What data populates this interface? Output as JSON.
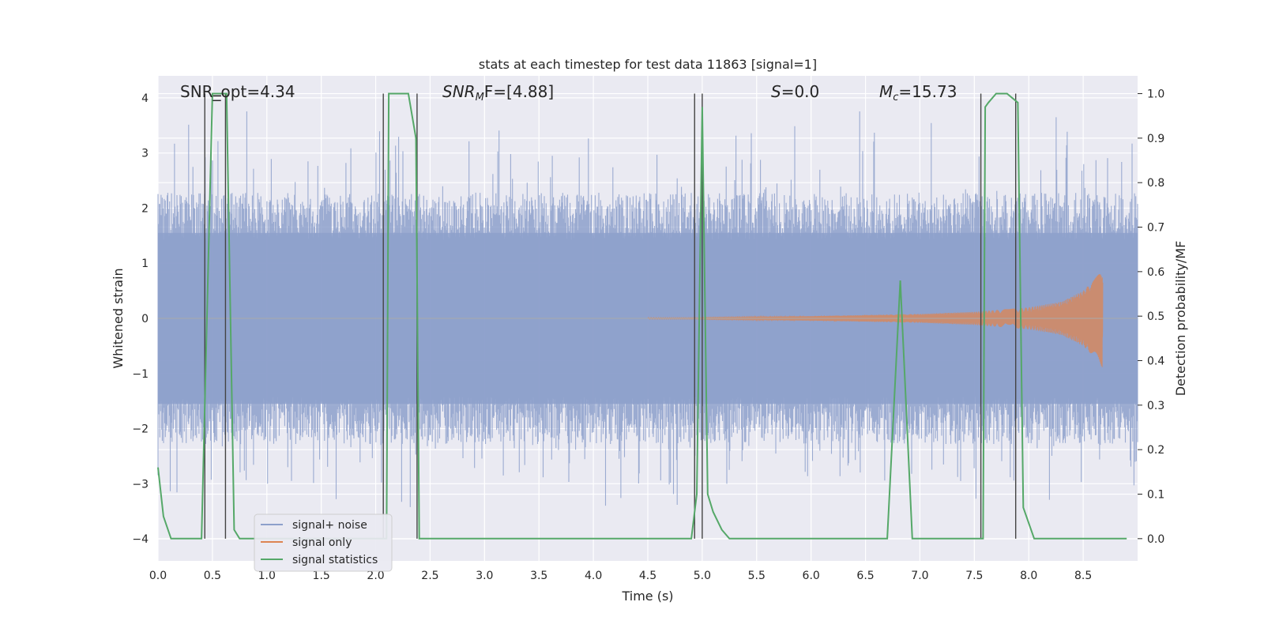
{
  "chart_data": {
    "type": "line",
    "title": "stats at each timestep for test data 11863 [signal=1]",
    "xlabel": "Time (s)",
    "ylabel": "Whitened strain",
    "ylabel_right": "Detection probability/MF",
    "xlim": [
      0,
      9.0
    ],
    "ylim": [
      -4.4,
      4.4
    ],
    "ylim_right": [
      -0.05,
      1.04
    ],
    "xticks": [
      0.0,
      0.5,
      1.0,
      1.5,
      2.0,
      2.5,
      3.0,
      3.5,
      4.0,
      4.5,
      5.0,
      5.5,
      6.0,
      6.5,
      7.0,
      7.5,
      8.0,
      8.5
    ],
    "xtick_labels": [
      "0.0",
      "0.5",
      "1.0",
      "1.5",
      "2.0",
      "2.5",
      "3.0",
      "3.5",
      "4.0",
      "4.5",
      "5.0",
      "5.5",
      "6.0",
      "6.5",
      "7.0",
      "7.5",
      "8.0",
      "8.5"
    ],
    "yticks": [
      -4,
      -3,
      -2,
      -1,
      0,
      1,
      2,
      3,
      4
    ],
    "ytick_labels": [
      "−4",
      "−3",
      "−2",
      "−1",
      "0",
      "1",
      "2",
      "3",
      "4"
    ],
    "yticks_right": [
      0.0,
      0.1,
      0.2,
      0.3,
      0.4,
      0.5,
      0.6,
      0.7,
      0.8,
      0.9,
      1.0
    ],
    "ytick_right_labels": [
      "0.0",
      "0.1",
      "0.2",
      "0.3",
      "0.4",
      "0.5",
      "0.6",
      "0.7",
      "0.8",
      "0.9",
      "1.0"
    ],
    "grid": true,
    "legend_position": "lower-left",
    "annotations": {
      "snr_opt": "SNR_opt=4.34",
      "snr_mf_main": "SNR",
      "snr_mf_sub": "M",
      "snr_mf_rest": "F=[4.88]",
      "s_label": "S",
      "s_value": "=0.0",
      "mc_main": "M",
      "mc_sub": "c",
      "mc_value": "=15.73"
    },
    "series": [
      {
        "name": "signal+ noise",
        "color": "#8da0cb",
        "description_type": "noise band",
        "band_typical": [
          -1.9,
          1.9
        ],
        "band_peaks_upper": [
          4.0,
          3.7,
          2.6,
          2.5,
          2.3,
          2.4,
          2.9,
          2.5,
          2.6,
          2.2,
          3.6,
          3.0,
          2.8,
          3.7,
          3.2,
          3.7,
          3.4,
          2.8,
          3.3,
          3.5
        ],
        "band_peaks_lower": [
          -2.6,
          -3.1,
          -2.4,
          -2.8,
          -3.3,
          -3.1,
          -3.4,
          -2.9,
          -3.3,
          -3.0,
          -3.5,
          -2.9,
          -3.1,
          -3.5,
          -2.8,
          -3.0,
          -2.8,
          -2.4,
          -2.9,
          -3.0
        ]
      },
      {
        "name": "signal only",
        "color": "#dd8452",
        "description_type": "chirp",
        "chirp_points": [
          [
            5.0,
            0.02
          ],
          [
            6.0,
            0.04
          ],
          [
            7.0,
            0.08
          ],
          [
            7.5,
            0.12
          ],
          [
            8.0,
            0.2
          ],
          [
            8.3,
            0.3
          ],
          [
            8.5,
            0.5
          ],
          [
            8.6,
            0.7
          ],
          [
            8.68,
            0.9
          ]
        ],
        "end_time": 8.68
      },
      {
        "name": "signal statistics",
        "color": "#55a868",
        "axis": "right",
        "x": [
          0.0,
          0.05,
          0.12,
          0.2,
          0.4,
          0.5,
          0.6,
          0.63,
          0.7,
          0.75,
          0.8,
          2.05,
          2.1,
          2.12,
          2.3,
          2.37,
          2.4,
          2.5,
          4.9,
          4.95,
          5.0,
          5.05,
          5.1,
          5.18,
          5.25,
          5.35,
          6.7,
          6.82,
          6.93,
          7.0,
          7.58,
          7.6,
          7.63,
          7.7,
          7.8,
          7.85,
          7.9,
          7.95,
          8.05,
          8.9
        ],
        "y": [
          0.16,
          0.05,
          0.0,
          0.0,
          0.0,
          1.0,
          1.0,
          1.0,
          0.02,
          0.0,
          0.0,
          0.0,
          0.0,
          1.0,
          1.0,
          0.9,
          0.0,
          0.0,
          0.0,
          0.1,
          0.97,
          0.1,
          0.06,
          0.02,
          0.0,
          0.0,
          0.0,
          0.58,
          0.0,
          0.0,
          0.0,
          0.97,
          0.98,
          1.0,
          1.0,
          0.99,
          0.98,
          0.07,
          0.0,
          0.0
        ]
      }
    ],
    "vertical_lines": [
      0.43,
      0.62,
      2.07,
      2.38,
      4.93,
      5.0,
      7.56,
      7.88
    ]
  }
}
